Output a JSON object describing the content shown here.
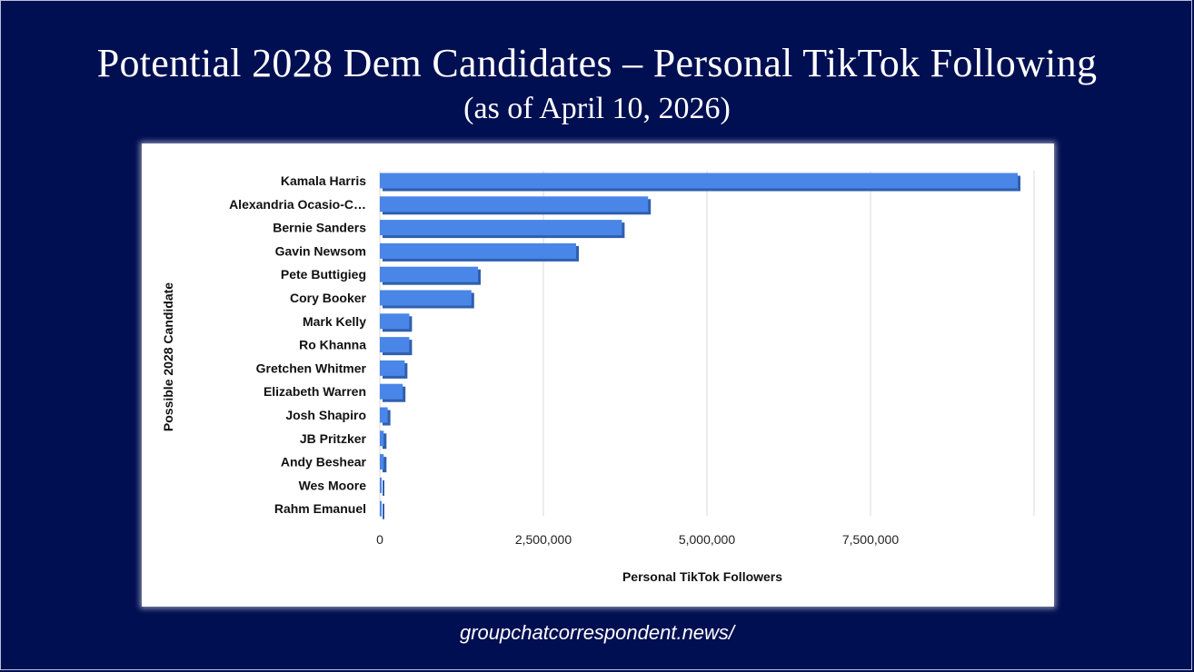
{
  "slide": {
    "title": "Potential 2028 Dem Candidates – Personal TikTok Following",
    "subtitle": "(as of April 10, 2026)",
    "footer": "groupchatcorrespondent.news/"
  },
  "colors": {
    "background": "#000f52",
    "bar": "#4a86e8",
    "bar_shadow": "#2f5fae",
    "grid": "#d9d9d9"
  },
  "chart_data": {
    "type": "bar",
    "orientation": "horizontal",
    "xlabel": "Personal TikTok Followers",
    "ylabel": "Possible 2028 Candidate",
    "xlim": [
      0,
      10000000
    ],
    "x_ticks": [
      0,
      2500000,
      5000000,
      7500000
    ],
    "x_tick_labels": [
      "0",
      "2,500,000",
      "5,000,000",
      "7,500,000"
    ],
    "grid": true,
    "legend": "none",
    "categories": [
      "Kamala Harris",
      "Alexandria Ocasio-C…",
      "Bernie Sanders",
      "Gavin Newsom",
      "Pete Buttigieg",
      "Cory Booker",
      "Mark Kelly",
      "Ro Khanna",
      "Gretchen Whitmer",
      "Elizabeth Warren",
      "Josh Shapiro",
      "JB Pritzker",
      "Andy Beshear",
      "Wes Moore",
      "Rahm Emanuel"
    ],
    "values": [
      9750000,
      4100000,
      3700000,
      3000000,
      1500000,
      1400000,
      450000,
      450000,
      380000,
      350000,
      120000,
      60000,
      60000,
      20000,
      20000
    ]
  }
}
